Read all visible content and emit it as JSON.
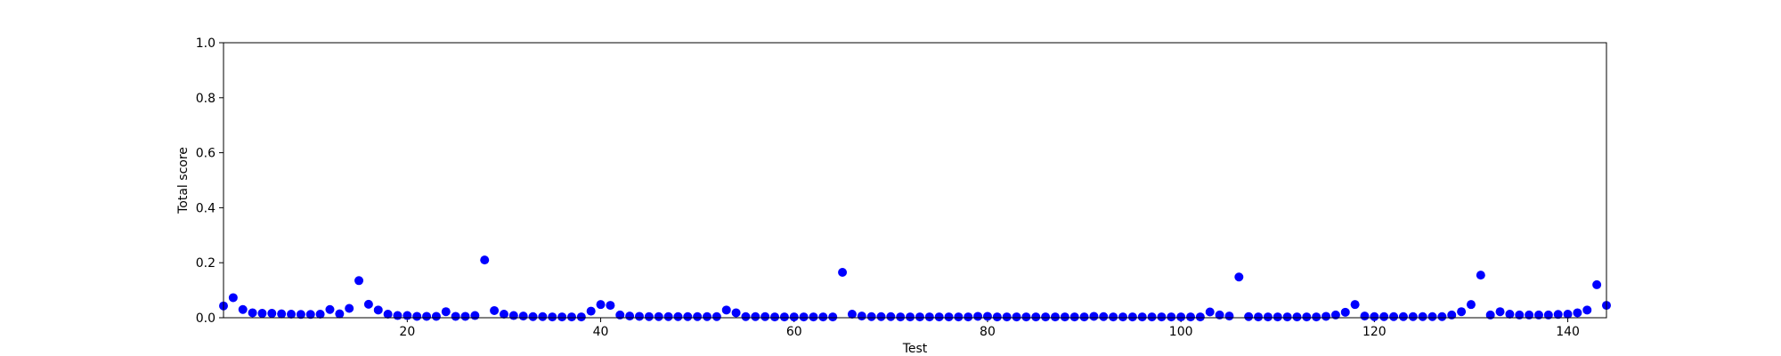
{
  "chart_data": {
    "type": "scatter",
    "xlabel": "Test",
    "ylabel": "Total score",
    "xlim": [
      1,
      144
    ],
    "ylim": [
      0,
      1
    ],
    "xticks": [
      20,
      40,
      60,
      80,
      100,
      120,
      140
    ],
    "yticks": [
      0.0,
      0.2,
      0.4,
      0.6,
      0.8,
      1.0
    ],
    "grid": false,
    "marker_color": "#0000ff",
    "series": [
      {
        "x": [
          1,
          2,
          3,
          4,
          5,
          6,
          7,
          8,
          9,
          10,
          11,
          12,
          13,
          14,
          15,
          16,
          17,
          18,
          19,
          20,
          21,
          22,
          23,
          24,
          25,
          26,
          27,
          28,
          29,
          30,
          31,
          32,
          33,
          34,
          35,
          36,
          37,
          38,
          39,
          40,
          41,
          42,
          43,
          44,
          45,
          46,
          47,
          48,
          49,
          50,
          51,
          52,
          53,
          54,
          55,
          56,
          57,
          58,
          59,
          60,
          61,
          62,
          63,
          64,
          65,
          66,
          67,
          68,
          69,
          70,
          71,
          72,
          73,
          74,
          75,
          76,
          77,
          78,
          79,
          80,
          81,
          82,
          83,
          84,
          85,
          86,
          87,
          88,
          89,
          90,
          91,
          92,
          93,
          94,
          95,
          96,
          97,
          98,
          99,
          100,
          101,
          102,
          103,
          104,
          105,
          106,
          107,
          108,
          109,
          110,
          111,
          112,
          113,
          114,
          115,
          116,
          117,
          118,
          119,
          120,
          121,
          122,
          123,
          124,
          125,
          126,
          127,
          128,
          129,
          130,
          131,
          132,
          133,
          134,
          135,
          136,
          137,
          138,
          139,
          140,
          141,
          142,
          143,
          144
        ],
        "y": [
          0.043,
          0.073,
          0.03,
          0.018,
          0.016,
          0.016,
          0.014,
          0.013,
          0.012,
          0.012,
          0.013,
          0.03,
          0.014,
          0.034,
          0.135,
          0.049,
          0.028,
          0.013,
          0.008,
          0.008,
          0.005,
          0.005,
          0.005,
          0.022,
          0.005,
          0.005,
          0.008,
          0.21,
          0.026,
          0.013,
          0.008,
          0.006,
          0.004,
          0.004,
          0.003,
          0.003,
          0.003,
          0.003,
          0.024,
          0.048,
          0.045,
          0.01,
          0.006,
          0.005,
          0.004,
          0.004,
          0.004,
          0.004,
          0.004,
          0.004,
          0.004,
          0.004,
          0.028,
          0.018,
          0.004,
          0.004,
          0.004,
          0.003,
          0.003,
          0.003,
          0.003,
          0.003,
          0.003,
          0.003,
          0.165,
          0.013,
          0.006,
          0.004,
          0.004,
          0.004,
          0.003,
          0.003,
          0.003,
          0.003,
          0.003,
          0.003,
          0.003,
          0.003,
          0.005,
          0.005,
          0.003,
          0.003,
          0.003,
          0.003,
          0.003,
          0.003,
          0.003,
          0.003,
          0.003,
          0.003,
          0.005,
          0.004,
          0.003,
          0.003,
          0.003,
          0.003,
          0.003,
          0.003,
          0.003,
          0.003,
          0.003,
          0.003,
          0.021,
          0.01,
          0.006,
          0.148,
          0.004,
          0.003,
          0.003,
          0.003,
          0.003,
          0.003,
          0.003,
          0.003,
          0.005,
          0.01,
          0.02,
          0.048,
          0.006,
          0.004,
          0.004,
          0.004,
          0.004,
          0.004,
          0.004,
          0.004,
          0.004,
          0.01,
          0.022,
          0.048,
          0.155,
          0.01,
          0.022,
          0.013,
          0.01,
          0.01,
          0.01,
          0.01,
          0.012,
          0.013,
          0.018,
          0.028,
          0.12,
          0.045
        ]
      }
    ]
  }
}
